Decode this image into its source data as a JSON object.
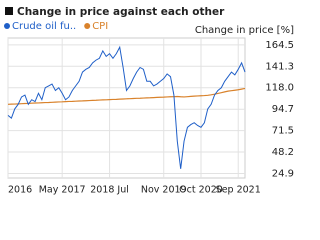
{
  "chart_data": {
    "type": "line",
    "title": "Change in price against each other",
    "y_axis_label": "Change in price [%]",
    "x": [
      "2016-01",
      "2016-02",
      "2016-03",
      "2016-04",
      "2016-05",
      "2016-06",
      "2016-07",
      "2016-08",
      "2016-09",
      "2016-10",
      "2016-11",
      "2016-12",
      "2017-01",
      "2017-02",
      "2017-03",
      "2017-04",
      "2017-05",
      "2017-06",
      "2017-07",
      "2017-08",
      "2017-09",
      "2017-10",
      "2017-11",
      "2017-12",
      "2018-01",
      "2018-02",
      "2018-03",
      "2018-04",
      "2018-05",
      "2018-06",
      "2018-07",
      "2018-08",
      "2018-09",
      "2018-10",
      "2018-11",
      "2018-12",
      "2019-01",
      "2019-02",
      "2019-03",
      "2019-04",
      "2019-05",
      "2019-06",
      "2019-07",
      "2019-08",
      "2019-09",
      "2019-10",
      "2019-11",
      "2019-12",
      "2020-01",
      "2020-02",
      "2020-03",
      "2020-04",
      "2020-05",
      "2020-06",
      "2020-07",
      "2020-08",
      "2020-09",
      "2020-10",
      "2020-11",
      "2020-12",
      "2021-01",
      "2021-02",
      "2021-03",
      "2021-04",
      "2021-05",
      "2021-06",
      "2021-07",
      "2021-08",
      "2021-09",
      "2021-10",
      "2021-11"
    ],
    "series": [
      {
        "name": "Crude oil fu..",
        "color": "#1f5fc8",
        "values": [
          88,
          85,
          95,
          100,
          108,
          110,
          100,
          105,
          103,
          112,
          105,
          118,
          120,
          122,
          115,
          118,
          112,
          105,
          108,
          115,
          120,
          125,
          135,
          138,
          140,
          145,
          148,
          150,
          158,
          152,
          155,
          150,
          155,
          162,
          140,
          115,
          120,
          128,
          135,
          140,
          138,
          125,
          125,
          120,
          122,
          125,
          128,
          133,
          130,
          110,
          60,
          30,
          60,
          75,
          78,
          80,
          77,
          75,
          80,
          95,
          100,
          110,
          115,
          118,
          125,
          130,
          135,
          132,
          138,
          145,
          135
        ]
      },
      {
        "name": "CPI",
        "color": "#d9822b",
        "values": [
          100.0,
          100.2,
          100.3,
          100.5,
          100.7,
          100.9,
          101.0,
          101.2,
          101.4,
          101.5,
          101.7,
          101.9,
          102.0,
          102.2,
          102.4,
          102.6,
          102.7,
          102.9,
          103.1,
          103.2,
          103.4,
          103.6,
          103.7,
          103.9,
          104.1,
          104.3,
          104.4,
          104.6,
          104.8,
          104.9,
          105.1,
          105.3,
          105.4,
          105.6,
          105.8,
          106.0,
          106.1,
          106.3,
          106.5,
          106.6,
          106.8,
          107.0,
          107.1,
          107.3,
          107.5,
          107.7,
          107.8,
          108.0,
          108.2,
          108.3,
          108.5,
          108.2,
          108.0,
          108.3,
          108.6,
          108.9,
          109.1,
          109.3,
          109.5,
          109.8,
          110.3,
          111.0,
          111.8,
          112.6,
          113.5,
          114.3,
          114.8,
          115.3,
          115.8,
          116.5,
          117.2
        ]
      }
    ],
    "ylim": [
      20,
      172
    ],
    "yticks": [
      24.9,
      48.2,
      71.5,
      94.7,
      {
        "value": 118,
        "label": "118.0"
      },
      141.3,
      164.5
    ],
    "xticks": [
      {
        "value": "2016-01",
        "label": "2016"
      },
      {
        "value": "2017-05",
        "label": "May 2017"
      },
      {
        "value": "2018-07",
        "label": "2018 Jul"
      },
      {
        "value": "2019-11",
        "label": "Nov 2019"
      },
      {
        "value": "2020-10",
        "label": "Oct 2020"
      },
      {
        "value": "2021-09",
        "label": "Sep 2021"
      }
    ],
    "grid": true
  }
}
